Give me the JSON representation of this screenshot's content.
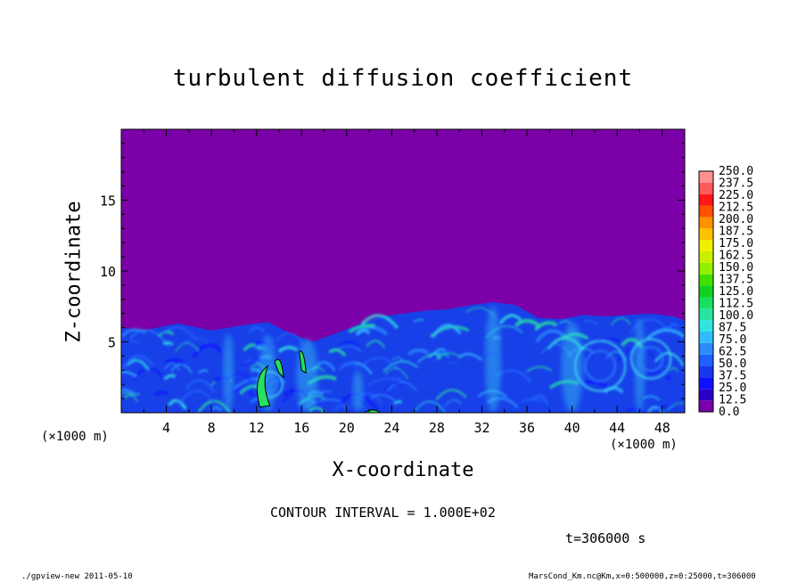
{
  "chart_data": {
    "type": "heatmap",
    "title": "turbulent diffusion coefficient",
    "xlabel": "X-coordinate",
    "ylabel": "Z-coordinate",
    "x_unit_left": "(×1000 m)",
    "x_unit_right": "(×1000 m)",
    "xlim": [
      0,
      50
    ],
    "ylim": [
      0,
      20
    ],
    "x_ticks": [
      "4",
      "8",
      "12",
      "16",
      "20",
      "24",
      "28",
      "32",
      "36",
      "40",
      "44",
      "48"
    ],
    "y_ticks": [
      "5",
      "10",
      "15"
    ],
    "colorbar_levels": [
      "0.0",
      "12.5",
      "25.0",
      "37.5",
      "50.0",
      "62.5",
      "75.0",
      "87.5",
      "100.0",
      "112.5",
      "125.0",
      "137.5",
      "150.0",
      "162.5",
      "175.0",
      "187.5",
      "200.0",
      "212.5",
      "225.0",
      "237.5",
      "250.0"
    ],
    "colorbar_colors": [
      "#7a00a8",
      "#2a00c8",
      "#1010ff",
      "#1838f0",
      "#2060ff",
      "#2c8cff",
      "#30bcff",
      "#30e4e0",
      "#28e4a0",
      "#18e060",
      "#10d020",
      "#40e000",
      "#90f000",
      "#c8f000",
      "#f0f000",
      "#ffc000",
      "#ff9000",
      "#ff5000",
      "#ff1818",
      "#ff5a5a",
      "#ff9090"
    ],
    "background_color": "#7b00a8",
    "mixed_layer_color": "#1840e8",
    "boundary_layer_top": [
      [
        0,
        6.0
      ],
      [
        2,
        5.8
      ],
      [
        5,
        6.3
      ],
      [
        8,
        5.8
      ],
      [
        11,
        6.2
      ],
      [
        13,
        6.4
      ],
      [
        15,
        5.6
      ],
      [
        17,
        5.0
      ],
      [
        19,
        5.6
      ],
      [
        21,
        6.2
      ],
      [
        23,
        6.8
      ],
      [
        25,
        7.0
      ],
      [
        27,
        7.2
      ],
      [
        29,
        7.3
      ],
      [
        31,
        7.6
      ],
      [
        33,
        7.8
      ],
      [
        35,
        7.6
      ],
      [
        37,
        6.7
      ],
      [
        39,
        6.6
      ],
      [
        41,
        6.9
      ],
      [
        43,
        6.8
      ],
      [
        45,
        6.9
      ],
      [
        47,
        7.0
      ],
      [
        49,
        6.8
      ],
      [
        50,
        6.5
      ]
    ],
    "contour_interval_text": "CONTOUR INTERVAL = 1.000E+02",
    "time_text": "t=306000 s"
  },
  "footer": {
    "left": "./gpview-new  2011-05-10",
    "right": "MarsCond_Km.nc@Km,x=0:500000,z=0:25000,t=306000"
  }
}
